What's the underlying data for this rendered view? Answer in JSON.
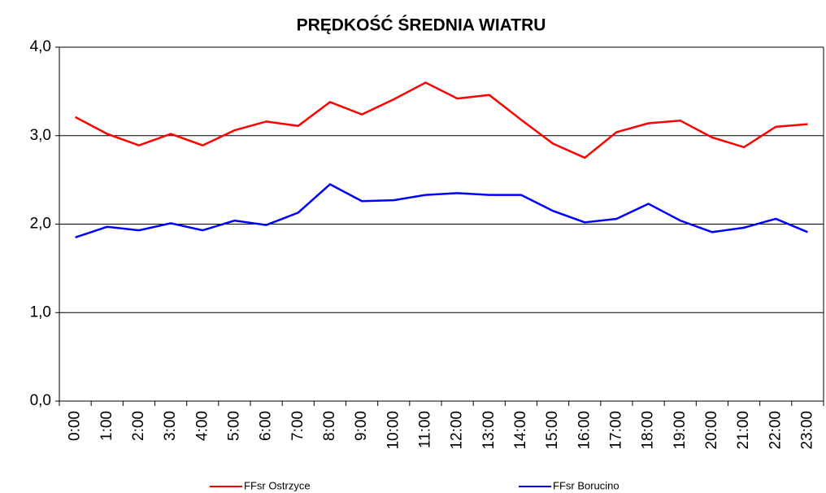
{
  "chart_data": {
    "type": "line",
    "title": "PRĘDKOŚĆ ŚREDNIA WIATRU",
    "categories": [
      "0:00",
      "1:00",
      "2:00",
      "3:00",
      "4:00",
      "5:00",
      "6:00",
      "7:00",
      "8:00",
      "9:00",
      "10:00",
      "11:00",
      "12:00",
      "13:00",
      "14:00",
      "15:00",
      "16:00",
      "17:00",
      "18:00",
      "19:00",
      "20:00",
      "21:00",
      "22:00",
      "23:00"
    ],
    "series": [
      {
        "name": "FFsr Ostrzyce",
        "color": "#ff0000",
        "values": [
          3.21,
          3.02,
          2.89,
          3.02,
          2.89,
          3.06,
          3.16,
          3.11,
          3.38,
          3.24,
          3.41,
          3.6,
          3.42,
          3.46,
          3.18,
          2.91,
          2.75,
          3.04,
          3.14,
          3.17,
          2.98,
          2.87,
          3.1,
          3.13
        ]
      },
      {
        "name": "FFsr Borucino",
        "color": "#0000ff",
        "values": [
          1.85,
          1.97,
          1.93,
          2.01,
          1.93,
          2.04,
          1.99,
          2.13,
          2.45,
          2.26,
          2.27,
          2.33,
          2.35,
          2.33,
          2.33,
          2.15,
          2.02,
          2.06,
          2.23,
          2.04,
          1.91,
          1.96,
          2.06,
          1.91
        ]
      }
    ],
    "ylim": [
      0,
      4
    ],
    "yticks": [
      {
        "value": 0,
        "label": "0,0"
      },
      {
        "value": 1,
        "label": "1,0"
      },
      {
        "value": 2,
        "label": "2,0"
      },
      {
        "value": 3,
        "label": "3,0"
      },
      {
        "value": 4,
        "label": "4,0"
      }
    ],
    "grid": true,
    "legend": "bottom"
  }
}
